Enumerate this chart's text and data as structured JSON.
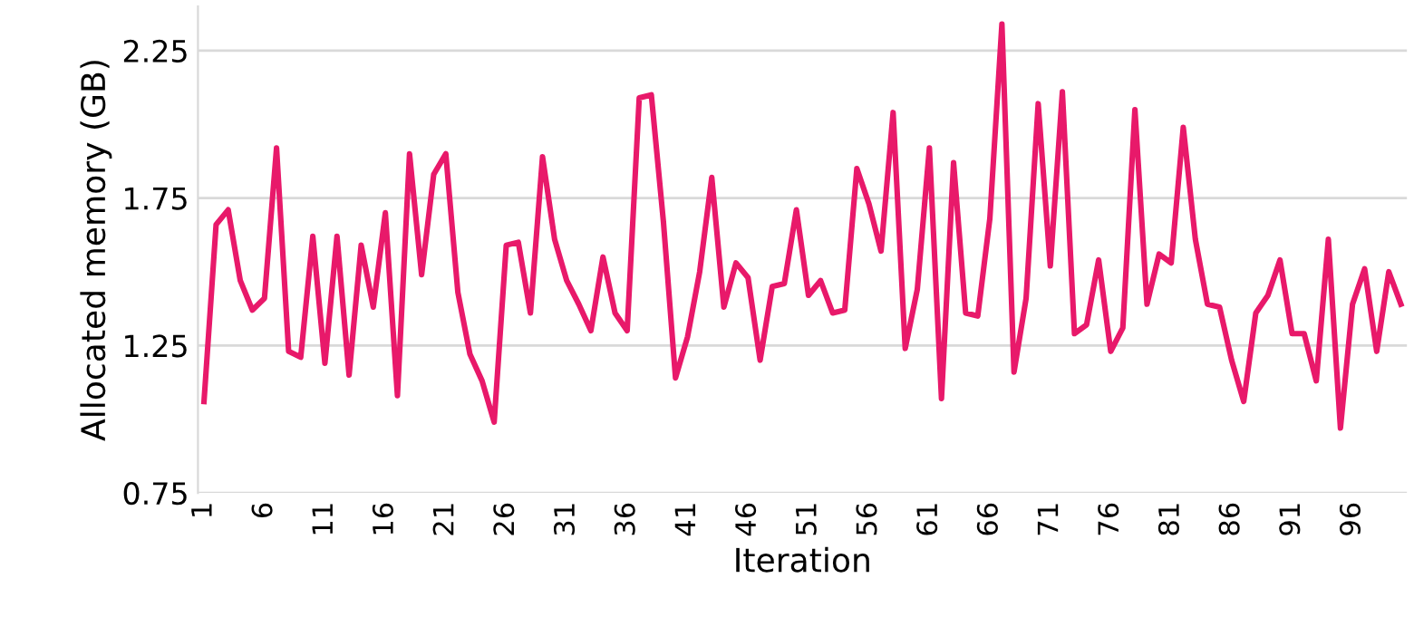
{
  "chart_data": {
    "type": "line",
    "xlabel": "Iteration",
    "ylabel": "Allocated memory (GB)",
    "categories": [
      "1",
      null,
      null,
      null,
      null,
      "6",
      null,
      null,
      null,
      null,
      "11",
      null,
      null,
      null,
      null,
      "16",
      null,
      null,
      null,
      null,
      "21",
      null,
      null,
      null,
      null,
      "26",
      null,
      null,
      null,
      null,
      "31",
      null,
      null,
      null,
      null,
      "36",
      null,
      null,
      null,
      null,
      "41",
      null,
      null,
      null,
      null,
      "46",
      null,
      null,
      null,
      null,
      "51",
      null,
      null,
      null,
      null,
      "56",
      null,
      null,
      null,
      null,
      "61",
      null,
      null,
      null,
      null,
      "66",
      null,
      null,
      null,
      null,
      "71",
      null,
      null,
      null,
      null,
      "76",
      null,
      null,
      null,
      null,
      "81",
      null,
      null,
      null,
      null,
      "86",
      null,
      null,
      null,
      null,
      "91",
      null,
      null,
      null,
      null,
      "96",
      null,
      null,
      null,
      null
    ],
    "series": [
      {
        "color": "#e8196a",
        "values": [
          1.06,
          1.66,
          1.71,
          1.47,
          1.37,
          1.41,
          1.92,
          1.23,
          1.21,
          1.62,
          1.19,
          1.62,
          1.15,
          1.59,
          1.38,
          1.7,
          1.08,
          1.9,
          1.49,
          1.83,
          1.9,
          1.43,
          1.22,
          1.13,
          0.99,
          1.59,
          1.6,
          1.36,
          1.89,
          1.61,
          1.47,
          1.39,
          1.3,
          1.55,
          1.36,
          1.3,
          2.09,
          2.1,
          1.67,
          1.14,
          1.28,
          1.5,
          1.82,
          1.38,
          1.53,
          1.48,
          1.2,
          1.45,
          1.46,
          1.71,
          1.42,
          1.47,
          1.36,
          1.37,
          1.85,
          1.73,
          1.57,
          2.04,
          1.24,
          1.44,
          1.92,
          1.07,
          1.87,
          1.36,
          1.35,
          1.68,
          2.34,
          1.16,
          1.41,
          2.07,
          1.52,
          2.11,
          1.29,
          1.32,
          1.54,
          1.23,
          1.31,
          2.05,
          1.39,
          1.56,
          1.53,
          1.99,
          1.61,
          1.39,
          1.38,
          1.2,
          1.06,
          1.36,
          1.42,
          1.54,
          1.29,
          1.29,
          1.13,
          1.61,
          0.97,
          1.39,
          1.51,
          1.23,
          1.5,
          1.39
        ]
      }
    ],
    "ylim": [
      0.75,
      2.4
    ],
    "yticks": [
      0.75,
      1.25,
      1.75,
      2.25
    ],
    "grid": "y",
    "marker": "none",
    "line_style": "solid"
  }
}
